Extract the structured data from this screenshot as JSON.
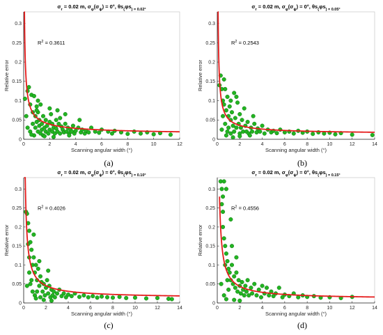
{
  "colors": {
    "point_fill": "#22b422",
    "point_stroke": "#0a6e0a",
    "fit_line": "#e51b1b",
    "axis": "#262626",
    "frame": "#bdbdbd"
  },
  "chart_data": [
    {
      "type": "scatter",
      "title_parts": [
        "σ",
        "r",
        " = 0.02 m, ",
        "σ",
        "φ",
        "(",
        "σ",
        "ψ",
        ") = 0°, ",
        "θ",
        "s",
        "(",
        "φ",
        "s",
        ") = 0.02°"
      ],
      "xlabel": "Scanning angular width (°)",
      "ylabel": "Relative error",
      "xlim": [
        0,
        12
      ],
      "ylim": [
        0,
        0.33
      ],
      "xticks": [
        "0",
        "2",
        "4",
        "6",
        "8",
        "10",
        "12"
      ],
      "yticks": [
        "0",
        "0.05",
        "0.1",
        "0.15",
        "0.2",
        "0.25",
        "0.3"
      ],
      "annotation": {
        "text": "R",
        "sup": "2",
        "value": " = 0.3611"
      },
      "sublabel": "(a)",
      "fit": {
        "a": 0.0116,
        "b": 0.0445,
        "k": 0.7,
        "xmin": 0.05,
        "xmax": 12
      },
      "points": [
        [
          0.1,
          0.105
        ],
        [
          0.2,
          0.06
        ],
        [
          0.3,
          0.03
        ],
        [
          0.4,
          0.135
        ],
        [
          0.5,
          0.09
        ],
        [
          0.5,
          0.02
        ],
        [
          0.6,
          0.115
        ],
        [
          0.7,
          0.07
        ],
        [
          0.7,
          0.04
        ],
        [
          0.8,
          0.112
        ],
        [
          0.8,
          0.01
        ],
        [
          0.9,
          0.06
        ],
        [
          0.9,
          0.03
        ],
        [
          1.0,
          0.085
        ],
        [
          1.0,
          0.045
        ],
        [
          1.1,
          0.02
        ],
        [
          1.1,
          0.07
        ],
        [
          1.2,
          0.035
        ],
        [
          1.2,
          0.05
        ],
        [
          1.3,
          0.015
        ],
        [
          1.3,
          0.09
        ],
        [
          1.4,
          0.04
        ],
        [
          1.4,
          0.025
        ],
        [
          1.5,
          0.06
        ],
        [
          1.5,
          0.01
        ],
        [
          1.6,
          0.03
        ],
        [
          1.7,
          0.05
        ],
        [
          1.7,
          0.02
        ],
        [
          1.8,
          0.035
        ],
        [
          1.9,
          0.015
        ],
        [
          2.0,
          0.045
        ],
        [
          2.0,
          0.025
        ],
        [
          2.1,
          0.065
        ],
        [
          2.2,
          0.02
        ],
        [
          2.2,
          0.04
        ],
        [
          2.3,
          0.03
        ],
        [
          2.4,
          0.015
        ],
        [
          2.5,
          0.05
        ],
        [
          2.5,
          0.028
        ],
        [
          2.6,
          0.02
        ],
        [
          2.7,
          0.04
        ],
        [
          2.8,
          0.015
        ],
        [
          2.9,
          0.033
        ],
        [
          3.0,
          0.025
        ],
        [
          3.1,
          0.018
        ],
        [
          3.2,
          0.04
        ],
        [
          3.3,
          0.02
        ],
        [
          3.4,
          0.03
        ],
        [
          3.5,
          0.015
        ],
        [
          3.6,
          0.025
        ],
        [
          3.7,
          0.02
        ],
        [
          3.8,
          0.035
        ],
        [
          3.9,
          0.015
        ],
        [
          4.0,
          0.022
        ],
        [
          4.2,
          0.03
        ],
        [
          4.4,
          0.018
        ],
        [
          4.5,
          0.025
        ],
        [
          4.7,
          0.015
        ],
        [
          4.8,
          0.022
        ],
        [
          5.0,
          0.018
        ],
        [
          5.2,
          0.03
        ],
        [
          5.5,
          0.02
        ],
        [
          5.8,
          0.017
        ],
        [
          6.0,
          0.025
        ],
        [
          6.5,
          0.02
        ],
        [
          6.8,
          0.015
        ],
        [
          7.0,
          0.022
        ],
        [
          7.5,
          0.018
        ],
        [
          8.0,
          0.014
        ],
        [
          8.5,
          0.02
        ],
        [
          9.0,
          0.015
        ],
        [
          9.5,
          0.018
        ],
        [
          10.0,
          0.013
        ],
        [
          10.5,
          0.016
        ],
        [
          11.3,
          0.012
        ],
        [
          1.0,
          0.075
        ],
        [
          2.0,
          0.08
        ],
        [
          2.6,
          0.075
        ],
        [
          3.2,
          0.065
        ],
        [
          4.3,
          0.05
        ],
        [
          0.3,
          0.125
        ],
        [
          0.6,
          0.012
        ],
        [
          1.6,
          0.008
        ],
        [
          2.3,
          0.006
        ],
        [
          3.5,
          0.01
        ],
        [
          1.1,
          0.1
        ],
        [
          2.8,
          0.055
        ]
      ]
    },
    {
      "type": "scatter",
      "title_parts": [
        "σ",
        "r",
        " = 0.02 m, ",
        "σ",
        "φ",
        "(",
        "σ",
        "ψ",
        ") = 0°, ",
        "θ",
        "s",
        "(",
        "φ",
        "s",
        ") = 0.05°"
      ],
      "xlabel": "Scanning angular width (°)",
      "ylabel": "Relative error",
      "xlim": [
        0,
        14
      ],
      "ylim": [
        0,
        0.33
      ],
      "xticks": [
        "0",
        "2",
        "4",
        "6",
        "8",
        "10",
        "12",
        "14"
      ],
      "yticks": [
        "0",
        "0.05",
        "0.1",
        "0.15",
        "0.2",
        "0.25",
        "0.3"
      ],
      "annotation": {
        "text": "R",
        "sup": "2",
        "value": " = 0.2543"
      },
      "sublabel": "(b)",
      "fit": {
        "a": 0.0135,
        "b": 0.0392,
        "k": 0.8,
        "xmin": 0.05,
        "xmax": 14
      },
      "points": [
        [
          0.2,
          0.14
        ],
        [
          0.3,
          0.165
        ],
        [
          0.4,
          0.13
        ],
        [
          0.5,
          0.1
        ],
        [
          0.5,
          0.06
        ],
        [
          0.6,
          0.09
        ],
        [
          0.7,
          0.13
        ],
        [
          0.7,
          0.04
        ],
        [
          0.8,
          0.075
        ],
        [
          0.9,
          0.11
        ],
        [
          0.9,
          0.02
        ],
        [
          1.0,
          0.06
        ],
        [
          1.0,
          0.03
        ],
        [
          1.1,
          0.085
        ],
        [
          1.2,
          0.05
        ],
        [
          1.2,
          0.015
        ],
        [
          1.3,
          0.07
        ],
        [
          1.4,
          0.035
        ],
        [
          1.5,
          0.12
        ],
        [
          1.5,
          0.02
        ],
        [
          1.6,
          0.055
        ],
        [
          1.7,
          0.03
        ],
        [
          1.8,
          0.095
        ],
        [
          1.9,
          0.04
        ],
        [
          2.0,
          0.065
        ],
        [
          2.0,
          0.015
        ],
        [
          2.1,
          0.03
        ],
        [
          2.2,
          0.05
        ],
        [
          2.3,
          0.02
        ],
        [
          2.4,
          0.08
        ],
        [
          2.5,
          0.035
        ],
        [
          2.6,
          0.02
        ],
        [
          2.7,
          0.045
        ],
        [
          2.8,
          0.015
        ],
        [
          3.0,
          0.03
        ],
        [
          3.1,
          0.02
        ],
        [
          3.3,
          0.04
        ],
        [
          3.5,
          0.018
        ],
        [
          3.6,
          0.028
        ],
        [
          3.8,
          0.02
        ],
        [
          4.0,
          0.035
        ],
        [
          4.2,
          0.015
        ],
        [
          4.5,
          0.025
        ],
        [
          4.8,
          0.018
        ],
        [
          5.0,
          0.022
        ],
        [
          5.3,
          0.016
        ],
        [
          5.6,
          0.025
        ],
        [
          6.0,
          0.018
        ],
        [
          6.4,
          0.02
        ],
        [
          6.8,
          0.015
        ],
        [
          7.2,
          0.022
        ],
        [
          7.6,
          0.017
        ],
        [
          8.0,
          0.02
        ],
        [
          8.5,
          0.014
        ],
        [
          9.0,
          0.018
        ],
        [
          9.5,
          0.015
        ],
        [
          10.0,
          0.017
        ],
        [
          10.5,
          0.013
        ],
        [
          11.0,
          0.016
        ],
        [
          12.0,
          0.012
        ],
        [
          13.8,
          0.011
        ],
        [
          0.4,
          0.025
        ],
        [
          0.8,
          0.01
        ],
        [
          1.4,
          0.005
        ],
        [
          2.0,
          0.008
        ],
        [
          2.9,
          0.01
        ],
        [
          1.7,
          0.11
        ],
        [
          3.2,
          0.06
        ],
        [
          0.6,
          0.155
        ],
        [
          1.2,
          0.1
        ]
      ]
    },
    {
      "type": "scatter",
      "title_parts": [
        "σ",
        "r",
        " = 0.02 m, ",
        "σ",
        "φ",
        "(",
        "σ",
        "ψ",
        ") = 0°, ",
        "θ",
        "s",
        "(",
        "φ",
        "s",
        ") = 0.10°"
      ],
      "xlabel": "Scanning angular width (°)",
      "ylabel": "Relative error",
      "xlim": [
        0,
        14
      ],
      "ylim": [
        0,
        0.33
      ],
      "xticks": [
        "0",
        "2",
        "4",
        "6",
        "8",
        "10",
        "12",
        "14"
      ],
      "yticks": [
        "0",
        "0.05",
        "0.1",
        "0.15",
        "0.2",
        "0.25",
        "0.3"
      ],
      "annotation": {
        "text": "R",
        "sup": "2",
        "value": " = 0.4026"
      },
      "sublabel": "(c)",
      "fit": {
        "a": 0.0122,
        "b": 0.0602,
        "k": 0.85,
        "xmin": 0.05,
        "xmax": 14
      },
      "points": [
        [
          0.2,
          0.24
        ],
        [
          0.3,
          0.235
        ],
        [
          0.4,
          0.21
        ],
        [
          0.5,
          0.19
        ],
        [
          0.5,
          0.12
        ],
        [
          0.6,
          0.16
        ],
        [
          0.6,
          0.05
        ],
        [
          0.7,
          0.14
        ],
        [
          0.8,
          0.1
        ],
        [
          0.8,
          0.03
        ],
        [
          0.9,
          0.12
        ],
        [
          1.0,
          0.08
        ],
        [
          1.0,
          0.02
        ],
        [
          1.1,
          0.1
        ],
        [
          1.2,
          0.06
        ],
        [
          1.2,
          0.03
        ],
        [
          1.3,
          0.09
        ],
        [
          1.4,
          0.045
        ],
        [
          1.5,
          0.07
        ],
        [
          1.5,
          0.015
        ],
        [
          1.6,
          0.055
        ],
        [
          1.7,
          0.03
        ],
        [
          1.8,
          0.05
        ],
        [
          1.9,
          0.02
        ],
        [
          2.0,
          0.04
        ],
        [
          2.1,
          0.06
        ],
        [
          2.2,
          0.025
        ],
        [
          2.3,
          0.045
        ],
        [
          2.4,
          0.015
        ],
        [
          2.5,
          0.035
        ],
        [
          2.6,
          0.02
        ],
        [
          2.7,
          0.03
        ],
        [
          2.8,
          0.015
        ],
        [
          3.0,
          0.025
        ],
        [
          3.2,
          0.035
        ],
        [
          3.4,
          0.018
        ],
        [
          3.6,
          0.025
        ],
        [
          3.8,
          0.015
        ],
        [
          4.0,
          0.022
        ],
        [
          4.3,
          0.018
        ],
        [
          4.6,
          0.025
        ],
        [
          5.0,
          0.016
        ],
        [
          5.4,
          0.02
        ],
        [
          5.8,
          0.015
        ],
        [
          6.2,
          0.018
        ],
        [
          6.6,
          0.014
        ],
        [
          7.0,
          0.017
        ],
        [
          7.5,
          0.015
        ],
        [
          8.0,
          0.014
        ],
        [
          8.6,
          0.016
        ],
        [
          9.2,
          0.013
        ],
        [
          10.0,
          0.014
        ],
        [
          11.0,
          0.012
        ],
        [
          12.0,
          0.013
        ],
        [
          13.0,
          0.011
        ],
        [
          13.3,
          0.01
        ],
        [
          0.3,
          0.045
        ],
        [
          0.5,
          0.08
        ],
        [
          0.7,
          0.06
        ],
        [
          1.1,
          0.012
        ],
        [
          1.8,
          0.008
        ],
        [
          2.5,
          0.006
        ],
        [
          0.4,
          0.155
        ],
        [
          0.9,
          0.18
        ],
        [
          1.4,
          0.11
        ],
        [
          2.2,
          0.085
        ]
      ]
    },
    {
      "type": "scatter",
      "title_parts": [
        "σ",
        "r",
        " = 0.02 m, ",
        "σ",
        "φ",
        "(",
        "σ",
        "ψ",
        ") = 0°, ",
        "θ",
        "s",
        "(",
        "φ",
        "s",
        ") = 0.15°"
      ],
      "xlabel": "Scanning angular width (°)",
      "ylabel": "Relative error",
      "xlim": [
        0,
        14
      ],
      "ylim": [
        0,
        0.33
      ],
      "xticks": [
        "0",
        "2",
        "4",
        "6",
        "8",
        "10",
        "12",
        "14"
      ],
      "yticks": [
        "0",
        "0.05",
        "0.1",
        "0.15",
        "0.2",
        "0.25",
        "0.3"
      ],
      "annotation": {
        "text": "R",
        "sup": "2",
        "value": " = 0.4556"
      },
      "sublabel": "(d)",
      "fit": {
        "a": 0.0098,
        "b": 0.0635,
        "k": 0.9,
        "xmin": 0.2,
        "xmax": 14
      },
      "points": [
        [
          0.3,
          0.32
        ],
        [
          0.4,
          0.3
        ],
        [
          0.4,
          0.26
        ],
        [
          0.5,
          0.24
        ],
        [
          0.5,
          0.2
        ],
        [
          0.6,
          0.32
        ],
        [
          0.6,
          0.17
        ],
        [
          0.7,
          0.15
        ],
        [
          0.7,
          0.1
        ],
        [
          0.8,
          0.13
        ],
        [
          0.8,
          0.3
        ],
        [
          0.9,
          0.11
        ],
        [
          0.9,
          0.06
        ],
        [
          1.0,
          0.09
        ],
        [
          1.0,
          0.035
        ],
        [
          1.1,
          0.08
        ],
        [
          1.2,
          0.22
        ],
        [
          1.2,
          0.06
        ],
        [
          1.3,
          0.1
        ],
        [
          1.4,
          0.05
        ],
        [
          1.5,
          0.07
        ],
        [
          1.6,
          0.04
        ],
        [
          1.7,
          0.08
        ],
        [
          1.8,
          0.03
        ],
        [
          1.9,
          0.06
        ],
        [
          2.0,
          0.045
        ],
        [
          2.1,
          0.025
        ],
        [
          2.2,
          0.055
        ],
        [
          2.3,
          0.035
        ],
        [
          2.4,
          0.02
        ],
        [
          2.5,
          0.045
        ],
        [
          2.6,
          0.03
        ],
        [
          2.7,
          0.06
        ],
        [
          2.8,
          0.02
        ],
        [
          3.0,
          0.04
        ],
        [
          3.1,
          0.025
        ],
        [
          3.3,
          0.05
        ],
        [
          3.5,
          0.02
        ],
        [
          3.7,
          0.035
        ],
        [
          3.9,
          0.015
        ],
        [
          4.0,
          0.045
        ],
        [
          4.2,
          0.025
        ],
        [
          4.4,
          0.04
        ],
        [
          4.6,
          0.02
        ],
        [
          4.8,
          0.03
        ],
        [
          5.0,
          0.018
        ],
        [
          5.2,
          0.025
        ],
        [
          5.5,
          0.04
        ],
        [
          5.8,
          0.015
        ],
        [
          6.0,
          0.022
        ],
        [
          6.4,
          0.018
        ],
        [
          6.8,
          0.025
        ],
        [
          7.2,
          0.015
        ],
        [
          7.6,
          0.02
        ],
        [
          8.0,
          0.016
        ],
        [
          8.6,
          0.018
        ],
        [
          9.2,
          0.014
        ],
        [
          10.0,
          0.015
        ],
        [
          11.0,
          0.013
        ],
        [
          12.0,
          0.016
        ],
        [
          0.35,
          0.05
        ],
        [
          0.6,
          0.02
        ],
        [
          0.8,
          0.01
        ],
        [
          1.5,
          0.008
        ],
        [
          2.0,
          0.006
        ],
        [
          1.3,
          0.15
        ],
        [
          1.7,
          0.12
        ],
        [
          0.5,
          0.28
        ]
      ]
    }
  ]
}
